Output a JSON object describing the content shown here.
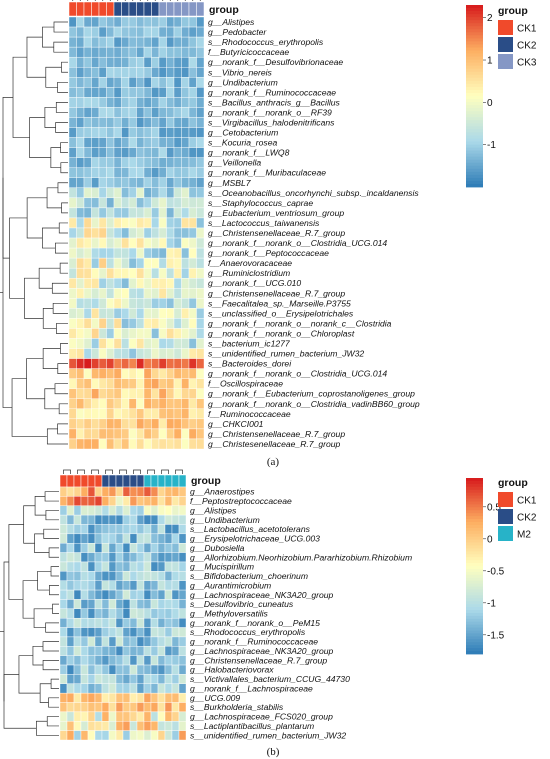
{
  "chart_data": [
    {
      "type": "heatmap",
      "panel_label": "(a)",
      "annotation_title": "group",
      "group_legend": {
        "title": "group",
        "items": [
          {
            "label": "CK1",
            "color": "#F04A2B"
          },
          {
            "label": "CK2",
            "color": "#2A4D87"
          },
          {
            "label": "CK3",
            "color": "#8597C5"
          }
        ]
      },
      "column_groups": [
        "CK1",
        "CK1",
        "CK1",
        "CK1",
        "CK1",
        "CK1",
        "CK2",
        "CK2",
        "CK2",
        "CK2",
        "CK2",
        "CK2",
        "CK3",
        "CK3",
        "CK3",
        "CK3",
        "CK3",
        "CK3"
      ],
      "colorbar": {
        "min": -2,
        "max": 2.3,
        "ticks": [
          2,
          1,
          0,
          -1
        ],
        "colors": [
          "#2C7BB6",
          "#ABD9E9",
          "#FFFFBF",
          "#FDAE61",
          "#D7191C"
        ]
      },
      "rows": [
        "g__Alistipes",
        "g__Pedobacter",
        "s__Rhodococcus_erythropolis",
        "f__Butyricicoccaceae",
        "g__norank_f__Desulfovibrionaceae",
        "s__Vibrio_nereis",
        "g__Undibacterium",
        "g__norank_f__Ruminococcaceae",
        "s__Bacillus_anthracis_g__Bacillus",
        "g__norank_f__norank_o__RF39",
        "s__Virgibacillus_halodenitrificans",
        "g__Cetobacterium",
        "s__Kocuria_rosea",
        "g__norank_f__LWQ8",
        "g__Veillonella",
        "g__norank_f__Muribaculaceae",
        "g__MSBL7",
        "s__Oceanobacillus_oncorhynchi_subsp._incaldanensis",
        "s__Staphylococcus_caprae",
        "g__Eubacterium_ventriosum_group",
        "s__Lactococcus_taiwanensis",
        "g__Christensenellaceae_R.7_group",
        "g__norank_f__norank_o__Clostridia_UCG.014",
        "g__norank_f__Peptococcaceae",
        "f__Anaerovoracaceae",
        "g__Ruminiclostridium",
        "g__norank_f__UCG.010",
        "g__Christensenellaceae_R.7_group",
        "s__Faecalitalea_sp._Marseille.P3755",
        "s__unclassified_o__Erysipelotrichales",
        "g__norank_f__norank_o__norank_c__Clostridia",
        "g__norank_f__norank_o__Chloroplast",
        "s__bacterium_ic1277",
        "s__unidentified_rumen_bacterium_JW32",
        "s__Bacteroides_dorei",
        "g__norank_f__norank_o__Clostridia_UCG.014",
        "f__Oscillospiraceae",
        "g__norank_f__Eubacterium_coprostanoligenes_group",
        "g__norank_f__norank_o__Clostridia_vadinBB60_group",
        "f__Ruminococcaceae",
        "g__CHKCI001",
        "g__Christensenellaceae_R.7_group",
        "g__Christesenellaceae_R.7_group"
      ]
    },
    {
      "type": "heatmap",
      "panel_label": "(b)",
      "annotation_title": "group",
      "group_legend": {
        "title": "group",
        "items": [
          {
            "label": "CK1",
            "color": "#F04A2B"
          },
          {
            "label": "CK2",
            "color": "#2A4D87"
          },
          {
            "label": "M2",
            "color": "#27B3C8"
          }
        ]
      },
      "column_groups": [
        "CK1",
        "CK1",
        "CK1",
        "CK1",
        "CK1",
        "CK1",
        "CK2",
        "CK2",
        "CK2",
        "CK2",
        "CK2",
        "CK2",
        "M2",
        "M2",
        "M2",
        "M2",
        "M2",
        "M2"
      ],
      "colorbar": {
        "min": -1.8,
        "max": 0.95,
        "ticks": [
          0.5,
          0,
          -0.5,
          -1,
          -1.5
        ],
        "colors": [
          "#2C7BB6",
          "#ABD9E9",
          "#FFFFBF",
          "#FDAE61",
          "#D7191C"
        ]
      },
      "rows": [
        "g__Anaerostipes",
        "f__Peptostreptococcaceae",
        "g__Alistipes",
        "g__Undibacterium",
        "s__Lactobacillus_acetotolerans",
        "g__Erysipelotrichaceae_UCG.003",
        "g__Dubosiella",
        "g__Allorhizobium.Neorhizobium.Pararhizobium.Rhizobium",
        "g__Mucispirillum",
        "s__Bifidobacterium_choerinum",
        "g__Aurantimicrobium",
        "g__Lachnospiraceae_NK3A20_group",
        "s__Desulfovibrio_cuneatus",
        "g__Methyloversatilis",
        "g__norank_f__norank_o__PeM15",
        "s__Rhodococcus_erythropolis",
        "g__norank_f__Ruminococcaceae",
        "g__Lachnospiraceae_NK3A20_group",
        "g__Christensenellaceae_R.7_group",
        "g__Halobacteriovorax",
        "s__Victivallales_bacterium_CCUG_44730",
        "g__norank_f__Lachnospiraceae",
        "g__UCG.009",
        "s__Burkholderia_stabilis",
        "g__Lachnospiraceae_FCS020_group",
        "s__Lactiplantibacillus_plantarum",
        "s__unidentified_rumen_bacterium_JW32"
      ]
    }
  ]
}
